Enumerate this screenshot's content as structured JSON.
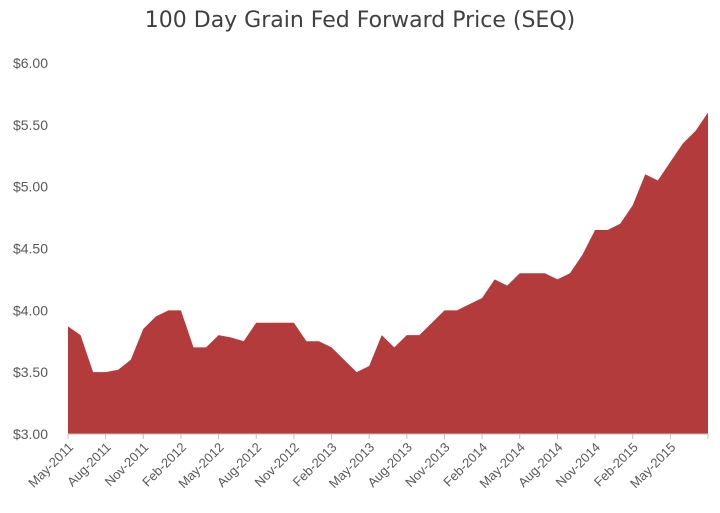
{
  "chart_data": {
    "type": "area",
    "title": "100 Day Grain Fed Forward Price  (SEQ)",
    "xlabel": "",
    "ylabel": "",
    "ylim": [
      3.0,
      6.0
    ],
    "y_ticks": [
      "$3.00",
      "$3.50",
      "$4.00",
      "$4.50",
      "$5.00",
      "$5.50",
      "$6.00"
    ],
    "y_tick_values": [
      3.0,
      3.5,
      4.0,
      4.5,
      5.0,
      5.5,
      6.0
    ],
    "x_ticks": [
      "May-2011",
      "Aug-2011",
      "Nov-2011",
      "Feb-2012",
      "May-2012",
      "Aug-2012",
      "Nov-2012",
      "Feb-2013",
      "May-2013",
      "Aug-2013",
      "Nov-2013",
      "Feb-2014",
      "May-2014",
      "Aug-2014",
      "Nov-2014",
      "Feb-2015",
      "May-2015"
    ],
    "color": "#b33b3b",
    "grid": false,
    "series": [
      {
        "x": [
          "May-2011",
          "Jun-2011",
          "Jun-2011",
          "Jul-2011",
          "Aug-2011",
          "Sep-2011",
          "Oct-2011",
          "Nov-2011",
          "Dec-2011",
          "Jan-2012",
          "Feb-2012",
          "Mar-2012",
          "Apr-2012",
          "May-2012",
          "Jun-2012",
          "Jul-2012",
          "Aug-2012",
          "Sep-2012",
          "Oct-2012",
          "Nov-2012",
          "Dec-2012",
          "Jan-2013",
          "Feb-2013",
          "Mar-2013",
          "Apr-2013",
          "May-2013",
          "Jun-2013",
          "Jul-2013",
          "Aug-2013",
          "Sep-2013",
          "Oct-2013",
          "Nov-2013",
          "Dec-2013",
          "Jan-2014",
          "Feb-2014",
          "Mar-2014",
          "Apr-2014",
          "May-2014",
          "Jun-2014",
          "Jul-2014",
          "Aug-2014",
          "Sep-2014",
          "Oct-2014",
          "Nov-2014",
          "Dec-2014",
          "Jan-2015",
          "Feb-2015",
          "Mar-2015",
          "Apr-2015",
          "May-2015",
          "Jun-2015",
          "Jul-2015"
        ],
        "values": [
          3.87,
          3.8,
          3.5,
          3.5,
          3.52,
          3.6,
          3.85,
          3.95,
          4.0,
          4.0,
          3.7,
          3.7,
          3.8,
          3.78,
          3.75,
          3.9,
          3.9,
          3.9,
          3.9,
          3.75,
          3.75,
          3.7,
          3.6,
          3.5,
          3.55,
          3.8,
          3.7,
          3.8,
          3.8,
          3.9,
          4.0,
          4.0,
          4.05,
          4.1,
          4.25,
          4.2,
          4.3,
          4.3,
          4.3,
          4.25,
          4.3,
          4.45,
          4.65,
          4.65,
          4.7,
          4.85,
          5.1,
          5.05,
          5.2,
          5.35,
          5.45,
          5.6
        ]
      }
    ]
  }
}
